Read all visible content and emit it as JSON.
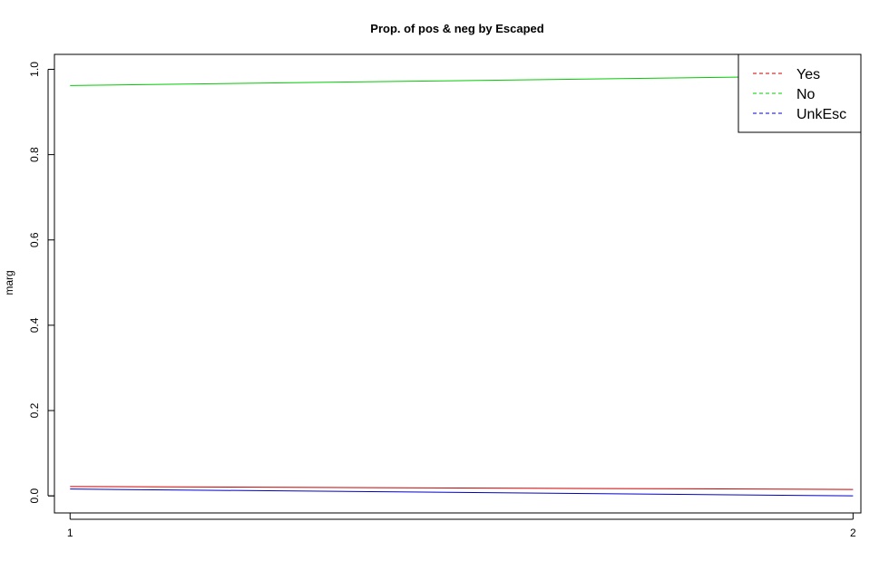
{
  "chart_data": {
    "type": "line",
    "title": "Prop. of pos & neg by Escaped",
    "xlabel": "",
    "ylabel": "marg",
    "x": [
      1,
      2
    ],
    "xticks": [
      "1",
      "2"
    ],
    "xlim": [
      0.98,
      2.01
    ],
    "ylim": [
      -0.04,
      1.035
    ],
    "yticks": [
      "0.0",
      "0.2",
      "0.4",
      "0.6",
      "0.8",
      "1.0"
    ],
    "ytick_values": [
      0.0,
      0.2,
      0.4,
      0.6,
      0.8,
      1.0
    ],
    "series": [
      {
        "name": "Yes",
        "values": [
          0.022,
          0.015
        ],
        "color": "#cc0000",
        "linestyle": "solid"
      },
      {
        "name": "No",
        "values": [
          0.962,
          0.985
        ],
        "color": "#00cc00",
        "linestyle": "solid"
      },
      {
        "name": "UnkEsc",
        "values": [
          0.016,
          0.0
        ],
        "color": "#0000cc",
        "linestyle": "solid"
      }
    ],
    "legend": {
      "position": "top-right",
      "entries": [
        "Yes",
        "No",
        "UnkEsc"
      ],
      "linestyle": "dashed"
    },
    "grid": false
  }
}
